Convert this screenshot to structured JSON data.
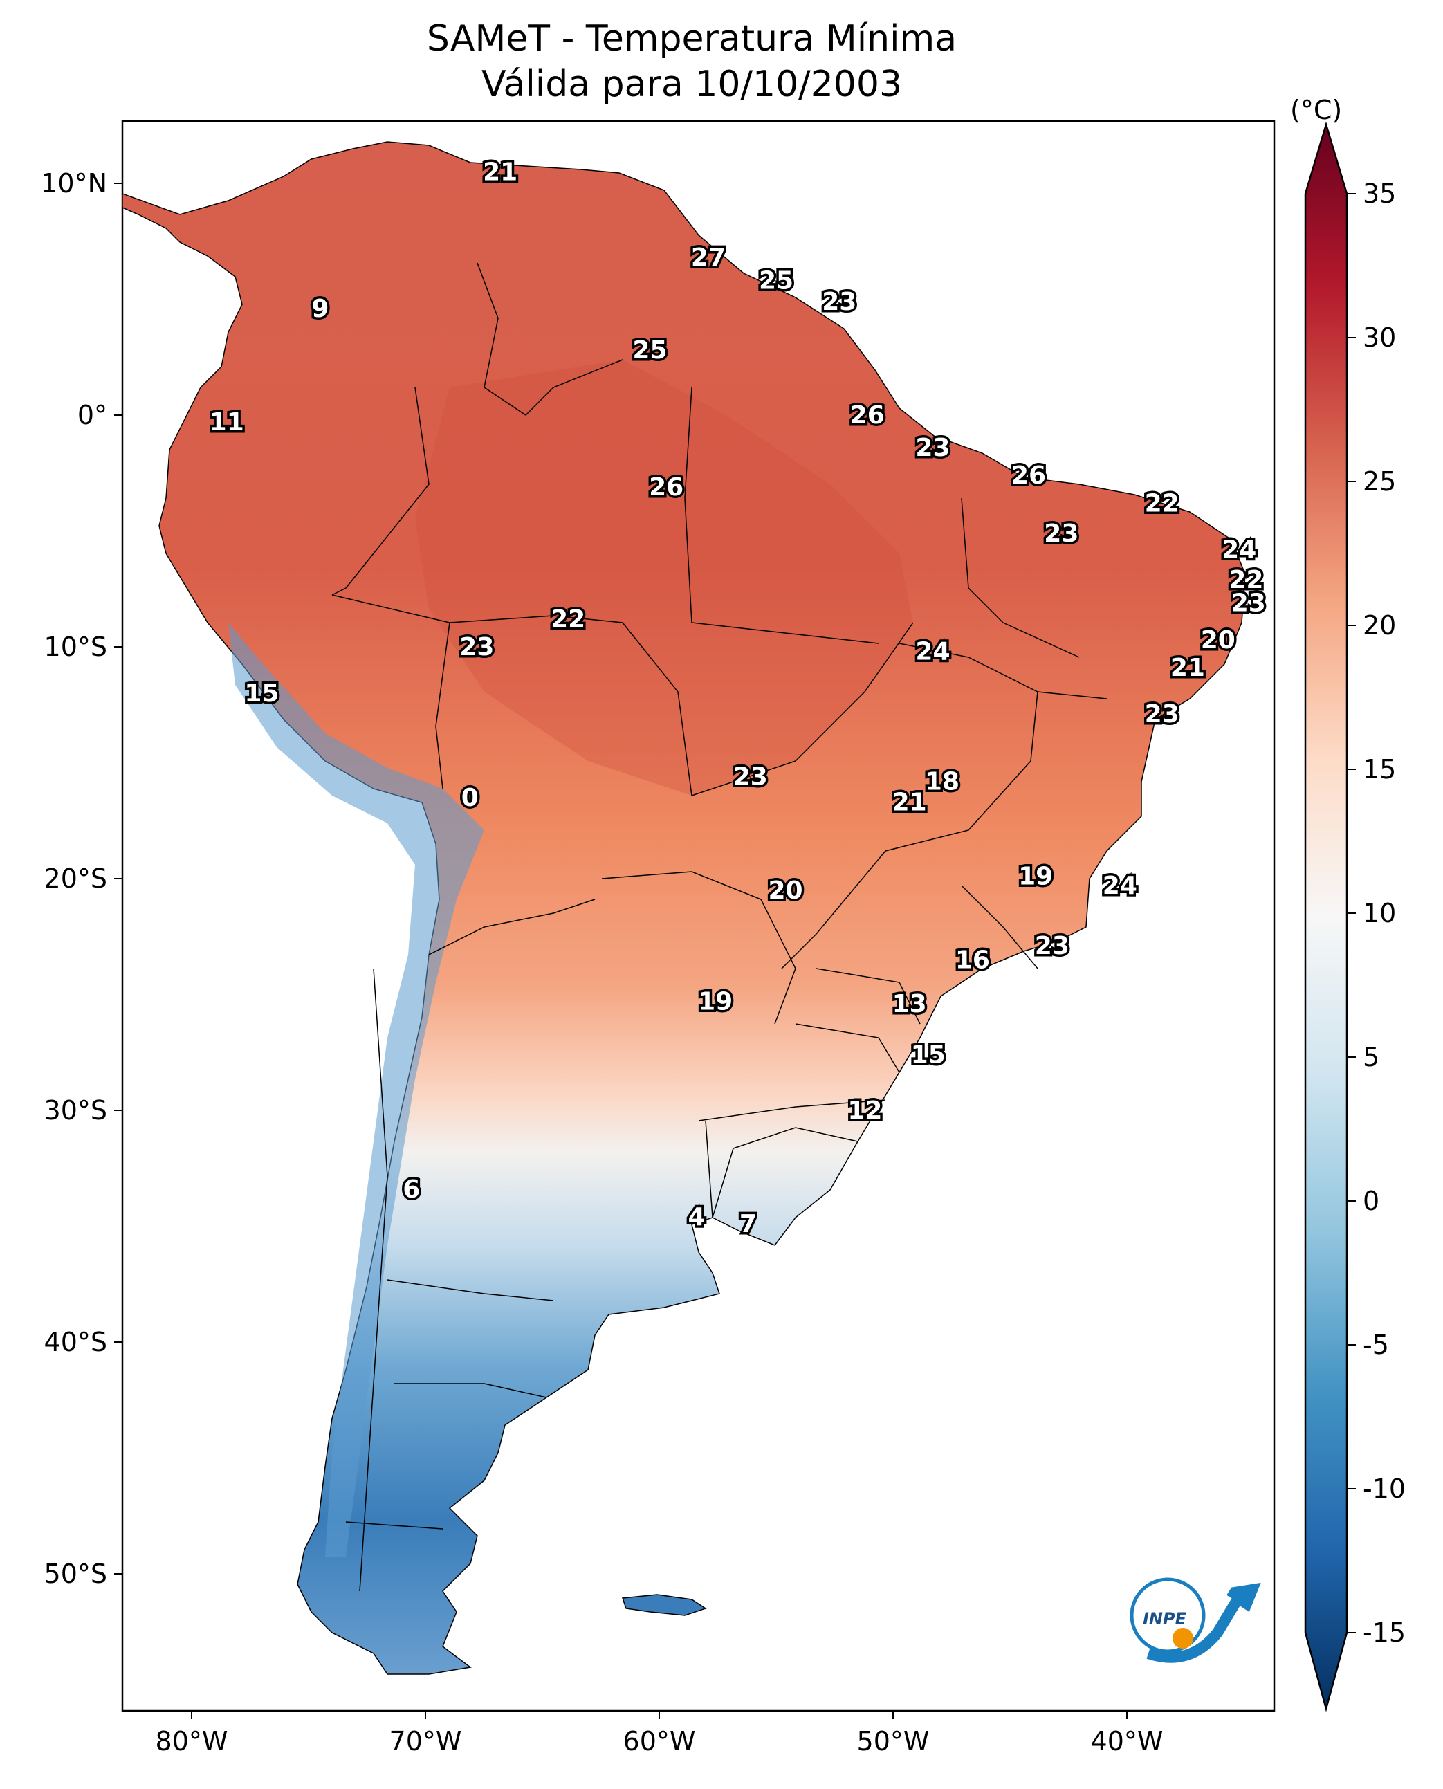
{
  "title": {
    "line1": "SAMeT - Temperatura Mínima",
    "line2": "Válida para 10/10/2003"
  },
  "axes": {
    "lon_ticks": [
      "80°W",
      "70°W",
      "60°W",
      "50°W",
      "40°W"
    ],
    "lat_ticks": [
      "10°N",
      "0°",
      "10°S",
      "20°S",
      "30°S",
      "40°S",
      "50°S"
    ]
  },
  "colorbar": {
    "unit": "(°C)",
    "ticks": [
      "35",
      "30",
      "25",
      "20",
      "15",
      "10",
      "5",
      "0",
      "-5",
      "-10",
      "-15"
    ],
    "range": [
      -15,
      35
    ]
  },
  "logo": {
    "text": "INPE"
  },
  "stations": [
    {
      "label": "21",
      "lon": -66.8,
      "lat": 10.5
    },
    {
      "label": "27",
      "lon": -57.9,
      "lat": 6.8
    },
    {
      "label": "25",
      "lon": -55.0,
      "lat": 5.8
    },
    {
      "label": "23",
      "lon": -52.3,
      "lat": 4.9
    },
    {
      "label": "9",
      "lon": -74.5,
      "lat": 4.6
    },
    {
      "label": "25",
      "lon": -60.4,
      "lat": 2.8
    },
    {
      "label": "26",
      "lon": -51.1,
      "lat": 0.0
    },
    {
      "label": "11",
      "lon": -78.5,
      "lat": -0.3
    },
    {
      "label": "23",
      "lon": -48.3,
      "lat": -1.4
    },
    {
      "label": "26",
      "lon": -44.2,
      "lat": -2.6
    },
    {
      "label": "26",
      "lon": -59.7,
      "lat": -3.1
    },
    {
      "label": "22",
      "lon": -38.5,
      "lat": -3.8
    },
    {
      "label": "23",
      "lon": -42.8,
      "lat": -5.1
    },
    {
      "label": "24",
      "lon": -35.2,
      "lat": -5.8
    },
    {
      "label": "22",
      "lon": -34.9,
      "lat": -7.1
    },
    {
      "label": "23",
      "lon": -34.8,
      "lat": -8.1
    },
    {
      "label": "22",
      "lon": -63.9,
      "lat": -8.8
    },
    {
      "label": "20",
      "lon": -36.1,
      "lat": -9.7
    },
    {
      "label": "23",
      "lon": -67.8,
      "lat": -10.0
    },
    {
      "label": "24",
      "lon": -48.3,
      "lat": -10.2
    },
    {
      "label": "21",
      "lon": -37.4,
      "lat": -10.9
    },
    {
      "label": "15",
      "lon": -77.0,
      "lat": -12.0
    },
    {
      "label": "23",
      "lon": -38.5,
      "lat": -12.9
    },
    {
      "label": "23",
      "lon": -56.1,
      "lat": -15.6
    },
    {
      "label": "18",
      "lon": -47.9,
      "lat": -15.8
    },
    {
      "label": "21",
      "lon": -49.3,
      "lat": -16.7
    },
    {
      "label": "0",
      "lon": -68.1,
      "lat": -16.5
    },
    {
      "label": "19",
      "lon": -43.9,
      "lat": -19.9
    },
    {
      "label": "24",
      "lon": -40.3,
      "lat": -20.3
    },
    {
      "label": "20",
      "lon": -54.6,
      "lat": -20.5
    },
    {
      "label": "23",
      "lon": -43.2,
      "lat": -22.9
    },
    {
      "label": "16",
      "lon": -46.6,
      "lat": -23.5
    },
    {
      "label": "19",
      "lon": -57.6,
      "lat": -25.3
    },
    {
      "label": "13",
      "lon": -49.3,
      "lat": -25.4
    },
    {
      "label": "15",
      "lon": -48.5,
      "lat": -27.6
    },
    {
      "label": "12",
      "lon": -51.2,
      "lat": -30.0
    },
    {
      "label": "6",
      "lon": -70.6,
      "lat": -33.4
    },
    {
      "label": "4",
      "lon": -58.4,
      "lat": -34.6
    },
    {
      "label": "7",
      "lon": -56.2,
      "lat": -34.9
    }
  ]
}
